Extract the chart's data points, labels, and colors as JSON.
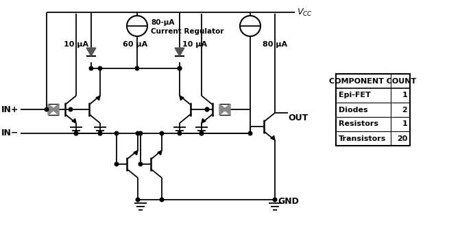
{
  "bg_color": "#ffffff",
  "line_color": "#000000",
  "table_header": "COMPONENT COUNT",
  "table_rows": [
    [
      "Epi-FET",
      "1"
    ],
    [
      "Diodes",
      "2"
    ],
    [
      "Resistors",
      "1"
    ],
    [
      "Transistors",
      "20"
    ]
  ],
  "labels": {
    "vcc": "$V_{CC}$",
    "gnd": "GND",
    "out": "OUT",
    "in_plus": "IN+",
    "in_minus": "IN−",
    "current_reg_line1": "80-μA",
    "current_reg_line2": "Current Regulator",
    "c10_left": "10 μA",
    "c60": "60 μA",
    "c10_right": "10 μA",
    "c80": "80 μA"
  },
  "figsize": [
    6.71,
    3.29
  ],
  "dpi": 100
}
